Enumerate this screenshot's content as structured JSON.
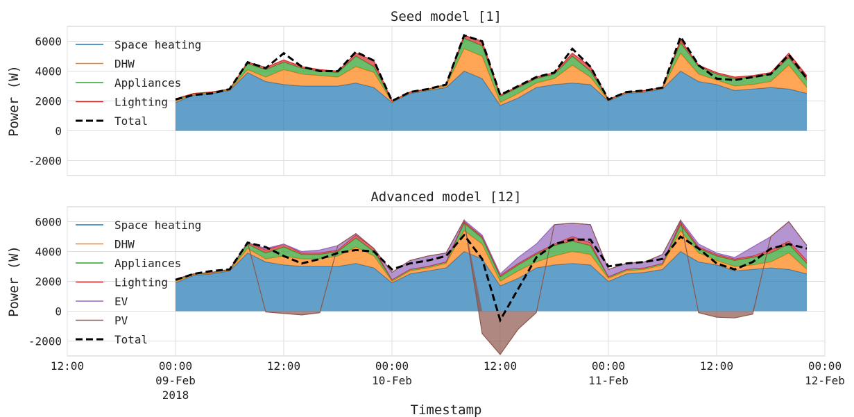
{
  "chart_data": [
    {
      "type": "stacked-area",
      "title": "Seed model [1]",
      "ylabel": "Power (W)",
      "x": [
        "2018-02-09T00:00",
        "2018-02-09T02:00",
        "2018-02-09T04:00",
        "2018-02-09T06:00",
        "2018-02-09T08:00",
        "2018-02-09T10:00",
        "2018-02-09T12:00",
        "2018-02-09T14:00",
        "2018-02-09T16:00",
        "2018-02-09T18:00",
        "2018-02-09T20:00",
        "2018-02-09T22:00",
        "2018-02-10T00:00",
        "2018-02-10T02:00",
        "2018-02-10T04:00",
        "2018-02-10T06:00",
        "2018-02-10T08:00",
        "2018-02-10T10:00",
        "2018-02-10T12:00",
        "2018-02-10T14:00",
        "2018-02-10T16:00",
        "2018-02-10T18:00",
        "2018-02-10T20:00",
        "2018-02-10T22:00",
        "2018-02-11T00:00",
        "2018-02-11T02:00",
        "2018-02-11T04:00",
        "2018-02-11T06:00",
        "2018-02-11T08:00",
        "2018-02-11T10:00",
        "2018-02-11T12:00",
        "2018-02-11T14:00",
        "2018-02-11T16:00",
        "2018-02-11T18:00",
        "2018-02-11T20:00",
        "2018-02-11T22:00"
      ],
      "series": [
        {
          "name": "Space heating",
          "color": "#1f77b4",
          "stacked": true,
          "values": [
            1900,
            2400,
            2500,
            2700,
            3900,
            3300,
            3100,
            3000,
            3000,
            3000,
            3200,
            2900,
            1900,
            2500,
            2700,
            2900,
            4000,
            3500,
            1700,
            2200,
            2900,
            3100,
            3200,
            3100,
            2000,
            2500,
            2600,
            2800,
            4000,
            3300,
            3100,
            2700,
            2800,
            2900,
            2800,
            2500
          ]
        },
        {
          "name": "DHW",
          "color": "#ff7f0e",
          "stacked": true,
          "values": [
            100,
            50,
            50,
            50,
            200,
            300,
            1000,
            800,
            700,
            600,
            1100,
            1000,
            50,
            50,
            50,
            100,
            1500,
            1500,
            200,
            300,
            300,
            400,
            1200,
            500,
            50,
            50,
            50,
            50,
            1200,
            500,
            300,
            300,
            300,
            400,
            1600,
            400
          ]
        },
        {
          "name": "Appliances",
          "color": "#2ca02c",
          "stacked": true,
          "values": [
            100,
            50,
            50,
            50,
            400,
            500,
            500,
            400,
            300,
            300,
            700,
            400,
            50,
            50,
            50,
            100,
            700,
            700,
            400,
            400,
            300,
            300,
            600,
            400,
            50,
            50,
            50,
            50,
            700,
            500,
            400,
            500,
            500,
            500,
            500,
            500
          ]
        },
        {
          "name": "Lighting",
          "color": "#d62728",
          "stacked": true,
          "values": [
            50,
            0,
            0,
            0,
            100,
            150,
            150,
            100,
            100,
            100,
            200,
            400,
            0,
            0,
            0,
            0,
            200,
            300,
            100,
            100,
            100,
            100,
            200,
            300,
            0,
            0,
            0,
            0,
            200,
            100,
            100,
            100,
            100,
            100,
            300,
            300
          ]
        },
        {
          "name": "Total",
          "color": "#000000",
          "stacked": false,
          "linestyle": "dashed",
          "values": [
            2100,
            2400,
            2500,
            2800,
            4600,
            4200,
            5200,
            4300,
            4000,
            4000,
            5300,
            4700,
            2000,
            2600,
            2800,
            3100,
            6400,
            6000,
            2400,
            3000,
            3600,
            3900,
            5500,
            4300,
            2100,
            2600,
            2700,
            2900,
            6300,
            4400,
            3500,
            3400,
            3600,
            3800,
            5100,
            3500
          ]
        }
      ],
      "ylim": [
        -3000,
        7000
      ],
      "yticks": [
        -2000,
        0,
        2000,
        4000,
        6000
      ],
      "xlim": [
        "2018-02-08T12:00",
        "2018-02-12T00:00"
      ],
      "xticks": [
        "2018-02-08T12:00",
        "2018-02-09T00:00",
        "2018-02-09T12:00",
        "2018-02-10T00:00",
        "2018-02-10T12:00",
        "2018-02-11T00:00",
        "2018-02-11T12:00",
        "2018-02-12T00:00"
      ],
      "grid": true,
      "legend": "upper left"
    },
    {
      "type": "stacked-area",
      "title": "Advanced model [12]",
      "ylabel": "Power (W)",
      "xlabel": "Timestamp",
      "x": [
        "2018-02-09T00:00",
        "2018-02-09T02:00",
        "2018-02-09T04:00",
        "2018-02-09T06:00",
        "2018-02-09T08:00",
        "2018-02-09T10:00",
        "2018-02-09T12:00",
        "2018-02-09T14:00",
        "2018-02-09T16:00",
        "2018-02-09T18:00",
        "2018-02-09T20:00",
        "2018-02-09T22:00",
        "2018-02-10T00:00",
        "2018-02-10T02:00",
        "2018-02-10T04:00",
        "2018-02-10T06:00",
        "2018-02-10T08:00",
        "2018-02-10T10:00",
        "2018-02-10T12:00",
        "2018-02-10T14:00",
        "2018-02-10T16:00",
        "2018-02-10T18:00",
        "2018-02-10T20:00",
        "2018-02-10T22:00",
        "2018-02-11T00:00",
        "2018-02-11T02:00",
        "2018-02-11T04:00",
        "2018-02-11T06:00",
        "2018-02-11T08:00",
        "2018-02-11T10:00",
        "2018-02-11T12:00",
        "2018-02-11T14:00",
        "2018-02-11T16:00",
        "2018-02-11T18:00",
        "2018-02-11T20:00",
        "2018-02-11T22:00"
      ],
      "series": [
        {
          "name": "Space heating",
          "color": "#1f77b4",
          "stacked": true,
          "values": [
            1900,
            2400,
            2500,
            2700,
            3900,
            3300,
            3100,
            3000,
            3000,
            3000,
            3200,
            2900,
            1900,
            2500,
            2700,
            2900,
            4000,
            3500,
            1700,
            2200,
            2900,
            3100,
            3200,
            3100,
            2000,
            2500,
            2600,
            2800,
            4000,
            3300,
            3100,
            2700,
            2800,
            2900,
            2800,
            2500
          ]
        },
        {
          "name": "DHW",
          "color": "#ff7f0e",
          "stacked": true,
          "values": [
            100,
            50,
            50,
            50,
            300,
            200,
            600,
            500,
            500,
            700,
            1100,
            800,
            100,
            200,
            200,
            300,
            1400,
            1000,
            300,
            500,
            400,
            600,
            800,
            700,
            200,
            200,
            200,
            300,
            1400,
            600,
            300,
            300,
            300,
            400,
            1100,
            300
          ]
        },
        {
          "name": "Appliances",
          "color": "#2ca02c",
          "stacked": true,
          "values": [
            100,
            50,
            50,
            50,
            300,
            400,
            600,
            300,
            300,
            300,
            600,
            300,
            100,
            100,
            100,
            100,
            500,
            400,
            300,
            400,
            500,
            700,
            700,
            600,
            100,
            100,
            100,
            100,
            400,
            300,
            300,
            400,
            500,
            600,
            600,
            400
          ]
        },
        {
          "name": "Lighting",
          "color": "#d62728",
          "stacked": true,
          "values": [
            50,
            0,
            0,
            0,
            100,
            200,
            200,
            100,
            100,
            100,
            200,
            200,
            0,
            0,
            0,
            0,
            100,
            100,
            100,
            100,
            100,
            100,
            300,
            200,
            0,
            0,
            0,
            0,
            200,
            100,
            100,
            100,
            100,
            200,
            200,
            200
          ]
        },
        {
          "name": "EV",
          "color": "#9467bd",
          "stacked": true,
          "values": [
            0,
            0,
            0,
            0,
            0,
            100,
            0,
            100,
            200,
            300,
            100,
            0,
            500,
            600,
            700,
            600,
            100,
            100,
            100,
            400,
            600,
            1300,
            900,
            1200,
            500,
            400,
            400,
            600,
            100,
            200,
            100,
            100,
            600,
            900,
            1300,
            1000
          ]
        },
        {
          "name": "PV",
          "color": "#8c564b",
          "stacked": true,
          "values": [
            0,
            0,
            0,
            0,
            0,
            -50,
            -150,
            -250,
            -100,
            0,
            0,
            0,
            0,
            0,
            0,
            0,
            0,
            -1500,
            -2900,
            -1200,
            -100,
            0,
            0,
            0,
            0,
            0,
            0,
            0,
            0,
            -100,
            -400,
            -450,
            -200,
            0,
            0,
            0
          ]
        },
        {
          "name": "Total",
          "color": "#000000",
          "stacked": false,
          "linestyle": "dashed",
          "values": [
            2100,
            2500,
            2700,
            2800,
            4600,
            4300,
            3700,
            3200,
            3500,
            3900,
            4100,
            4000,
            2800,
            3200,
            3400,
            3700,
            5100,
            3500,
            -600,
            1500,
            3600,
            4500,
            4800,
            4800,
            3000,
            3200,
            3300,
            3500,
            5000,
            4200,
            3200,
            2800,
            3300,
            4200,
            4500,
            4200
          ]
        }
      ],
      "ylim": [
        -3000,
        7000
      ],
      "yticks": [
        -2000,
        0,
        2000,
        4000,
        6000
      ],
      "xlim": [
        "2018-02-08T12:00",
        "2018-02-12T00:00"
      ],
      "xticks": [
        {
          "value": "2018-02-08T12:00",
          "label": [
            "12:00"
          ]
        },
        {
          "value": "2018-02-09T00:00",
          "label": [
            "00:00",
            "09-Feb",
            "2018"
          ]
        },
        {
          "value": "2018-02-09T12:00",
          "label": [
            "12:00"
          ]
        },
        {
          "value": "2018-02-10T00:00",
          "label": [
            "00:00",
            "10-Feb"
          ]
        },
        {
          "value": "2018-02-10T12:00",
          "label": [
            "12:00"
          ]
        },
        {
          "value": "2018-02-11T00:00",
          "label": [
            "00:00",
            "11-Feb"
          ]
        },
        {
          "value": "2018-02-11T12:00",
          "label": [
            "12:00"
          ]
        },
        {
          "value": "2018-02-12T00:00",
          "label": [
            "00:00",
            "12-Feb"
          ]
        }
      ],
      "grid": true,
      "legend": "upper left"
    }
  ]
}
